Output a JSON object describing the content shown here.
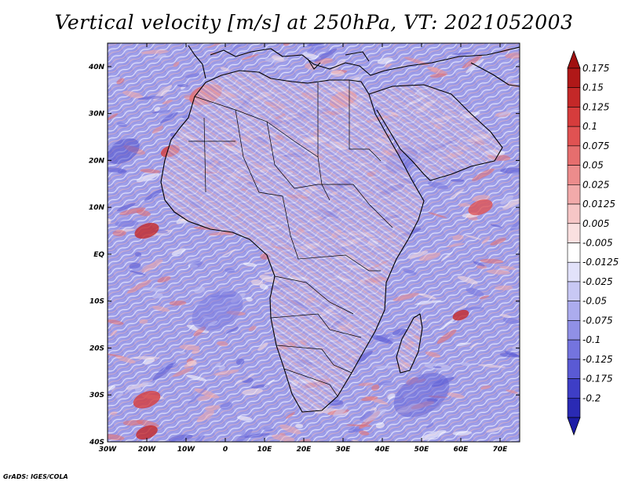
{
  "title": "Vertical velocity [m/s] at 250hPa, VT: 2021052003",
  "credit": "GrADS: IGES/COLA",
  "map": {
    "lon_range": [
      -30,
      75
    ],
    "lat_range": [
      -40,
      45
    ],
    "lon_ticks": [
      {
        "value": -30,
        "label": "30W"
      },
      {
        "value": -20,
        "label": "20W"
      },
      {
        "value": -10,
        "label": "10W"
      },
      {
        "value": 0,
        "label": "0"
      },
      {
        "value": 10,
        "label": "10E"
      },
      {
        "value": 20,
        "label": "20E"
      },
      {
        "value": 30,
        "label": "30E"
      },
      {
        "value": 40,
        "label": "40E"
      },
      {
        "value": 50,
        "label": "50E"
      },
      {
        "value": 60,
        "label": "60E"
      },
      {
        "value": 70,
        "label": "70E"
      }
    ],
    "lat_ticks": [
      {
        "value": 40,
        "label": "40N"
      },
      {
        "value": 30,
        "label": "30N"
      },
      {
        "value": 20,
        "label": "20N"
      },
      {
        "value": 10,
        "label": "10N"
      },
      {
        "value": 0,
        "label": "EQ"
      },
      {
        "value": -10,
        "label": "10S"
      },
      {
        "value": -20,
        "label": "20S"
      },
      {
        "value": -30,
        "label": "30S"
      },
      {
        "value": -40,
        "label": "40S"
      }
    ]
  },
  "colorbar": {
    "levels": [
      {
        "label": "0.175",
        "color": "#b01818"
      },
      {
        "label": "0.15",
        "color": "#c42828"
      },
      {
        "label": "0.125",
        "color": "#d63c3c"
      },
      {
        "label": "0.1",
        "color": "#e05252"
      },
      {
        "label": "0.075",
        "color": "#e66e6e"
      },
      {
        "label": "0.05",
        "color": "#ec8c8c"
      },
      {
        "label": "0.025",
        "color": "#f2aaaa"
      },
      {
        "label": "0.0125",
        "color": "#f6c6c6"
      },
      {
        "label": "0.005",
        "color": "#fae0e0"
      },
      {
        "label": "-0.005",
        "color": "#ffffff"
      },
      {
        "label": "-0.0125",
        "color": "#e2e2fa"
      },
      {
        "label": "-0.025",
        "color": "#c8c8f4"
      },
      {
        "label": "-0.05",
        "color": "#acacee"
      },
      {
        "label": "-0.075",
        "color": "#9090e6"
      },
      {
        "label": "-0.1",
        "color": "#7474de"
      },
      {
        "label": "-0.125",
        "color": "#5a5ad4"
      },
      {
        "label": "-0.175",
        "color": "#3e3ec6"
      },
      {
        "label": "-0.2",
        "color": "#2a2ab4"
      }
    ],
    "top_arrow_color": "#a01010",
    "bottom_arrow_color": "#1c1ca6",
    "bands": [
      "#a01010",
      "#b01818",
      "#c42828",
      "#d63c3c",
      "#e05252",
      "#e66e6e",
      "#ec8c8c",
      "#f2aaaa",
      "#f6c6c6",
      "#fae0e0",
      "#ffffff",
      "#e2e2fa",
      "#c8c8f4",
      "#acacee",
      "#9090e6",
      "#7474de",
      "#5a5ad4",
      "#3e3ec6",
      "#2a2ab4",
      "#1c1ca6"
    ]
  }
}
